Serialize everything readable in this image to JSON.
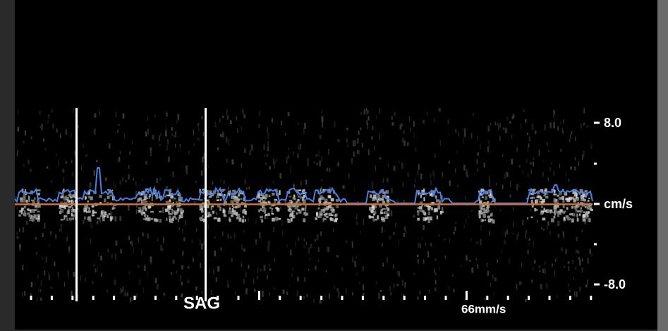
{
  "velocity_scale": {
    "top_label": "8.0",
    "unit": "cm/s",
    "bottom_label": "-8.0"
  },
  "view_label": "SAG",
  "sweep_speed": "66mm/s"
}
